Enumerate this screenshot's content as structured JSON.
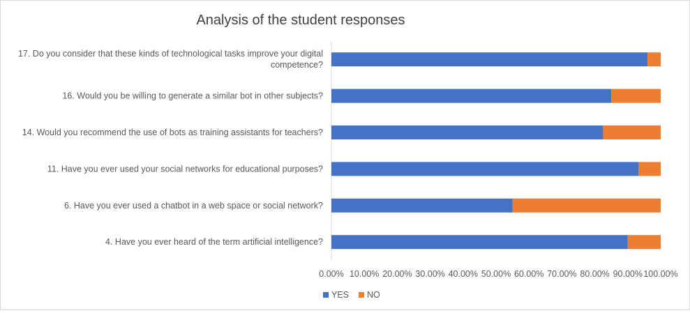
{
  "chart_data": {
    "type": "bar",
    "orientation": "horizontal",
    "stacked": "percent",
    "title": "Analysis of the student responses",
    "categories": [
      [
        "17. Do you consider that these kinds of technological tasks improve your digital",
        "competence?"
      ],
      [
        "16. Would you be willing to generate a similar bot in other subjects?"
      ],
      [
        "14. Would you recommend the use of bots as training assistants for teachers?"
      ],
      [
        "11. Have you ever used your social networks for educational purposes?"
      ],
      [
        "6. Have you ever used a chatbot in a web space or social network?"
      ],
      [
        "4. Have you ever heard of the term artificial intelligence?"
      ]
    ],
    "series": [
      {
        "name": "YES",
        "color": "#4472c4",
        "values": [
          96,
          85,
          82.5,
          93.3,
          55,
          90
        ]
      },
      {
        "name": "NO",
        "color": "#ed7d31",
        "values": [
          4,
          15,
          17.5,
          6.7,
          45,
          10
        ]
      }
    ],
    "xlim": [
      0,
      1
    ],
    "x_tick_labels": [
      "0.00%",
      "10.00%",
      "20.00%",
      "30.00%",
      "40.00%",
      "50.00%",
      "60.00%",
      "70.00%",
      "80.00%",
      "90.00%",
      "100.00%"
    ],
    "legend": "bottom-left",
    "grid": false
  }
}
